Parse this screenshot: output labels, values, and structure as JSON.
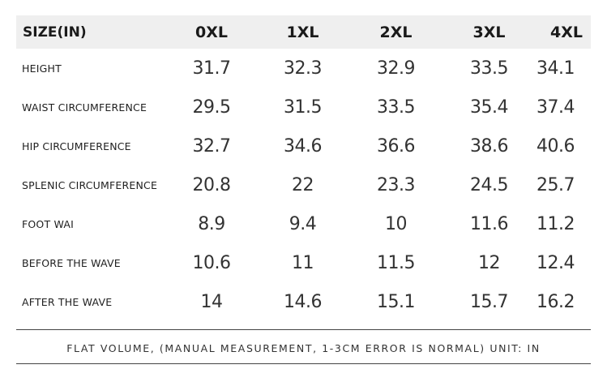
{
  "table": {
    "header": [
      "SIZE(IN)",
      "0XL",
      "1XL",
      "2XL",
      "3XL",
      "4XL"
    ],
    "rows": [
      [
        "HEIGHT",
        "31.7",
        "32.3",
        "32.9",
        "33.5",
        "34.1"
      ],
      [
        "WAIST CIRCUMFERENCE",
        "29.5",
        "31.5",
        "33.5",
        "35.4",
        "37.4"
      ],
      [
        "HIP CIRCUMFERENCE",
        "32.7",
        "34.6",
        "36.6",
        "38.6",
        "40.6"
      ],
      [
        "SPLENIC CIRCUMFERENCE",
        "20.8",
        "22",
        "23.3",
        "24.5",
        "25.7"
      ],
      [
        "FOOT WAI",
        "8.9",
        "9.4",
        "10",
        "11.6",
        "11.2"
      ],
      [
        "BEFORE THE WAVE",
        "10.6",
        "11",
        "11.5",
        "12",
        "12.4"
      ],
      [
        "AFTER THE WAVE",
        "14",
        "14.6",
        "15.1",
        "15.7",
        "16.2"
      ]
    ]
  },
  "note": "FLAT VOLUME, (MANUAL MEASUREMENT, 1-3CM ERROR IS NORMAL) UNIT: IN"
}
